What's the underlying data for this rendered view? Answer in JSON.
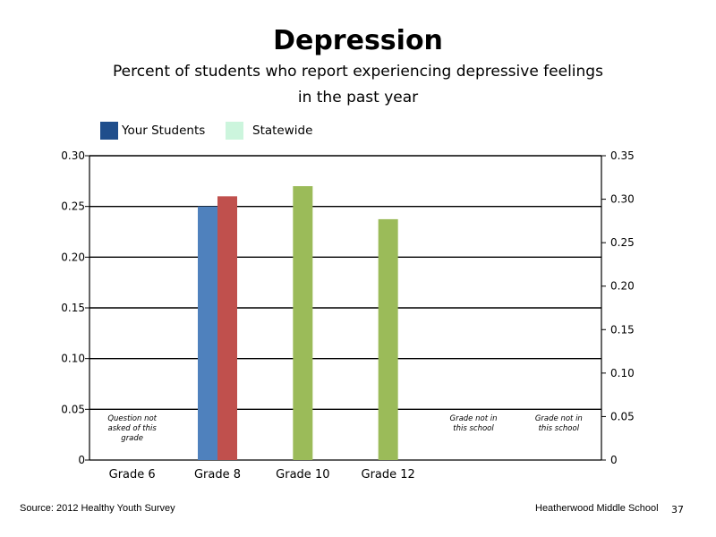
{
  "slide": {
    "source": "Source: 2012 Healthy Youth Survey",
    "school": "Heatherwood Middle  School",
    "page_number": "37"
  },
  "chart_data": {
    "type": "bar",
    "title": "Depression",
    "subtitle_lines": [
      "Percent of students who report experiencing depressive feelings",
      "in the past year"
    ],
    "categories": [
      "Grade 6",
      "Grade 8",
      "Grade 10",
      "Grade 12",
      "",
      ""
    ],
    "legend": [
      {
        "name": "Your Students",
        "color": "#1F4E8C"
      },
      {
        "name": "Statewide",
        "color": "#CCF5DD"
      }
    ],
    "bars": [
      {
        "category": "Grade 8",
        "axis": "left",
        "value": 0.25,
        "color": "#4F81BD"
      },
      {
        "category": "Grade 8",
        "axis": "left",
        "value": 0.26,
        "color": "#C0504D"
      },
      {
        "category": "Grade 10",
        "axis": "right",
        "value": 0.315,
        "color": "#9BBB59"
      },
      {
        "category": "Grade 12",
        "axis": "right",
        "value": 0.277,
        "color": "#9BBB59"
      }
    ],
    "y_left": {
      "range": [
        0,
        0.3
      ],
      "ticks": [
        "0",
        "0.05",
        "0.10",
        "0.15",
        "0.20",
        "0.25",
        "0.30"
      ],
      "values": [
        0,
        0.05,
        0.1,
        0.15,
        0.2,
        0.25,
        0.3
      ]
    },
    "y_right": {
      "range": [
        0,
        0.35
      ],
      "ticks": [
        "0",
        "0.05",
        "0.10",
        "0.15",
        "0.20",
        "0.25",
        "0.30",
        "0.35"
      ],
      "values": [
        0,
        0.05,
        0.1,
        0.15,
        0.2,
        0.25,
        0.3,
        0.35
      ]
    },
    "grid": true,
    "legend_position": "top-left",
    "annotations": [
      {
        "category_index": 0,
        "lines": [
          "Question not",
          "asked of this",
          "grade"
        ]
      },
      {
        "category_index": 4,
        "lines": [
          "Grade not in",
          "this school"
        ]
      },
      {
        "category_index": 5,
        "lines": [
          "Grade not in",
          "this school"
        ]
      }
    ]
  }
}
